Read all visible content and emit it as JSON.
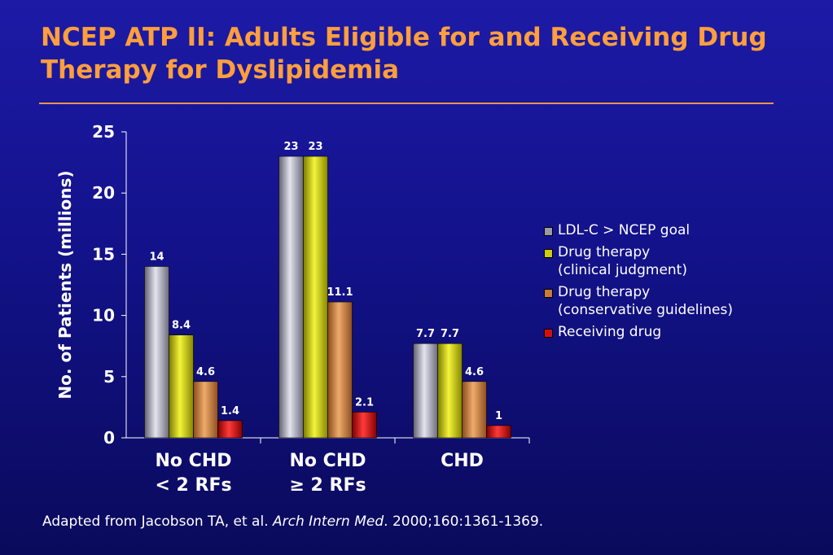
{
  "header": {
    "title": "NCEP ATP II: Adults Eligible for and Receiving Drug Therapy for Dyslipidemia"
  },
  "chart_data": {
    "type": "bar",
    "ylabel": "No. of Patients (millions)",
    "ylim": [
      0,
      25
    ],
    "yticks": [
      0,
      5,
      10,
      15,
      20,
      25
    ],
    "categories": [
      "No CHD\n< 2 RFs",
      "No CHD\n≥ 2 RFs",
      "CHD"
    ],
    "series": [
      {
        "name": "LDL-C > NCEP goal",
        "values": [
          14,
          23,
          7.7
        ],
        "labels": [
          "14",
          "23",
          "7.7"
        ],
        "color": "#9a9aa8"
      },
      {
        "name": "Drug therapy\n(clinical judgment)",
        "values": [
          8.4,
          23,
          7.7
        ],
        "labels": [
          "8.4",
          "23",
          "7.7"
        ],
        "color": "#cccc10"
      },
      {
        "name": "Drug therapy\n(conservative guidelines)",
        "values": [
          4.6,
          11.1,
          4.6
        ],
        "labels": [
          "4.6",
          "11.1",
          "4.6"
        ],
        "color": "#c77a3c"
      },
      {
        "name": "Receiving drug",
        "values": [
          1.4,
          2.1,
          1
        ],
        "labels": [
          "1.4",
          "2.1",
          "1"
        ],
        "color": "#d40f0f"
      }
    ],
    "legend_position": "right",
    "grid": false
  },
  "footer": {
    "source_prefix": "Adapted from Jacobson TA, et al. ",
    "source_journal": "Arch Intern Med",
    "source_suffix": ". 2000;160:1361-1369."
  }
}
